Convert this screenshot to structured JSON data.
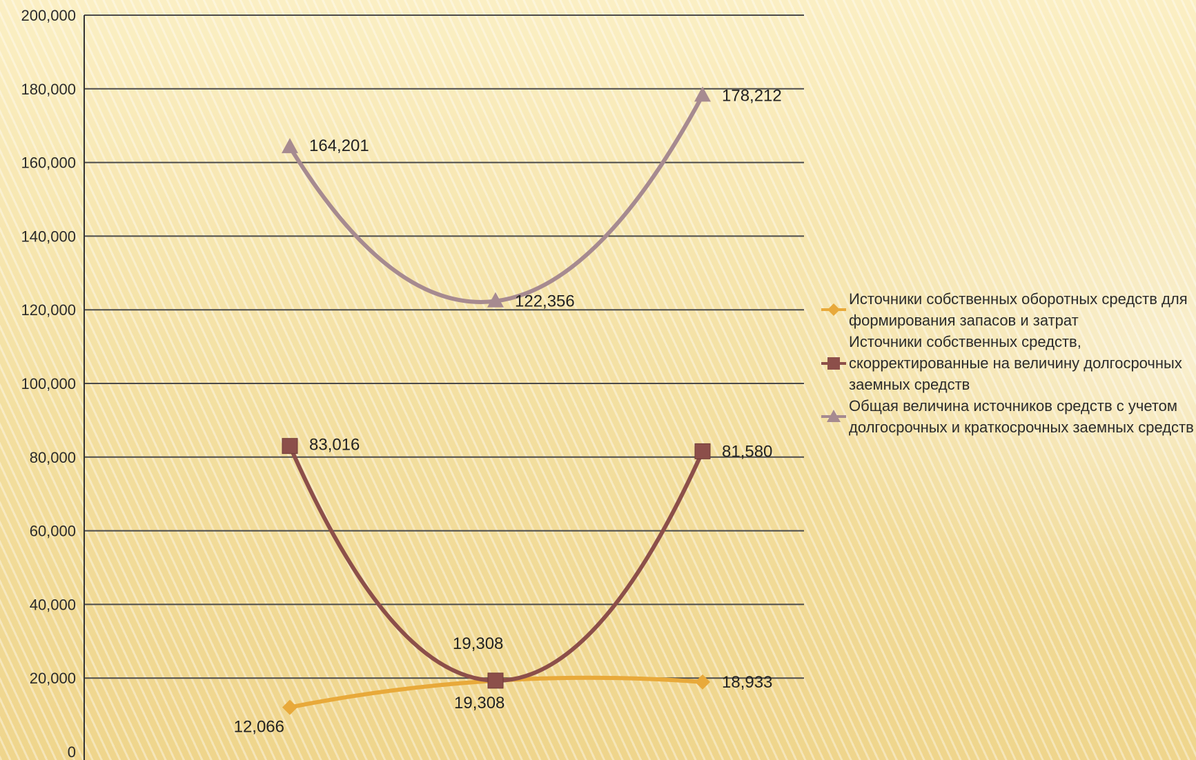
{
  "chart_data": {
    "type": "line",
    "title": "",
    "xlabel": "",
    "ylabel": "",
    "ylim": [
      0,
      200000
    ],
    "yticks": [
      "0",
      "20,000",
      "40,000",
      "60,000",
      "80,000",
      "100,000",
      "120,000",
      "140,000",
      "160,000",
      "180,000",
      "200,000"
    ],
    "grid": true,
    "legend_position": "right",
    "point_count": 3,
    "series": [
      {
        "name": "Источники собственных оборотных средств для формирования запасов и затрат",
        "values": [
          12066,
          19308,
          18933
        ],
        "labels": [
          "12,066",
          "19,308",
          "18,933"
        ],
        "color": "#e8a93a",
        "marker": "diamond"
      },
      {
        "name": "Источники собственных средств, скорректированные на величину долгосрочных заемных средств",
        "values": [
          83016,
          19308,
          81580
        ],
        "labels": [
          "83,016",
          "19,308",
          "81,580"
        ],
        "color": "#8c4f4a",
        "marker": "square"
      },
      {
        "name": "Общая величина источников средств с учетом долгосрочных и краткосрочных заемных средств",
        "values": [
          164201,
          122356,
          178212
        ],
        "labels": [
          "164,201",
          "122,356",
          "178,212"
        ],
        "color": "#a68a90",
        "marker": "triangle"
      }
    ]
  }
}
